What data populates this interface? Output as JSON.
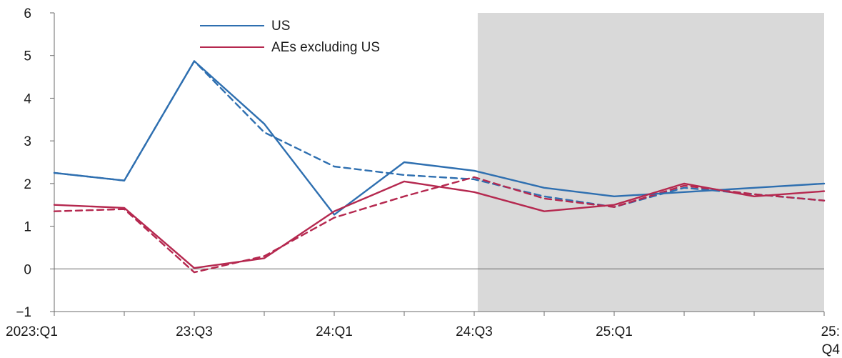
{
  "chart_data": {
    "type": "line",
    "title": "",
    "xlabel": "",
    "ylabel": "",
    "categories": [
      "2023:Q1",
      "2023:Q2",
      "2023:Q3",
      "2023:Q4",
      "2024:Q1",
      "2024:Q2",
      "2024:Q3",
      "2024:Q4",
      "2025:Q1",
      "2025:Q2",
      "2025:Q3",
      "2025:Q4"
    ],
    "tick_labels": [
      {
        "index": 0,
        "text": "2023:Q1"
      },
      {
        "index": 2,
        "text": "23:Q3"
      },
      {
        "index": 4,
        "text": "24:Q1"
      },
      {
        "index": 6,
        "text": "24:Q3"
      },
      {
        "index": 8,
        "text": "25:Q1"
      },
      {
        "index": 11,
        "text": "25:",
        "text2": "Q4"
      }
    ],
    "ylim": [
      -1,
      6
    ],
    "yticks": [
      -1,
      0,
      1,
      2,
      3,
      4,
      5,
      6
    ],
    "forecast_shading": {
      "from_index": 6.05,
      "to_index": 11,
      "color": "#d9d9d9"
    },
    "zero_line": true,
    "legend": {
      "placement": "top-left"
    },
    "series": [
      {
        "name": "US",
        "color": "#2e6fb0",
        "style": "solid",
        "values": [
          2.25,
          2.07,
          4.87,
          3.4,
          1.27,
          2.5,
          2.3,
          1.9,
          1.7,
          1.8,
          1.9,
          2.0
        ]
      },
      {
        "name": "",
        "color": "#2e6fb0",
        "style": "dashed",
        "values": [
          2.25,
          2.07,
          4.87,
          3.2,
          2.4,
          2.2,
          2.1,
          1.7,
          1.45,
          1.9,
          1.75,
          1.6
        ]
      },
      {
        "name": "AEs excluding US",
        "color": "#b5284f",
        "style": "solid",
        "values": [
          1.5,
          1.43,
          0.02,
          0.25,
          1.35,
          2.05,
          1.8,
          1.35,
          1.5,
          2.0,
          1.7,
          1.82
        ]
      },
      {
        "name": "",
        "color": "#b5284f",
        "style": "dashed",
        "values": [
          1.35,
          1.4,
          -0.08,
          0.3,
          1.2,
          1.7,
          2.15,
          1.65,
          1.45,
          1.95,
          1.75,
          1.6
        ]
      }
    ]
  }
}
